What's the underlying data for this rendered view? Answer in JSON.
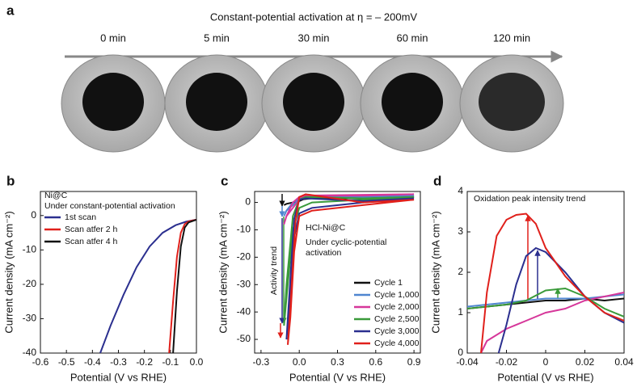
{
  "panel_a": {
    "label": "a",
    "title": "Constant-potential activation at η = – 200mV",
    "times": [
      "0 min",
      "5 min",
      "30 min",
      "60 min",
      "120 min"
    ]
  },
  "chart_data": [
    {
      "type": "line",
      "panel_label": "b",
      "xlabel": "Potential (V vs RHE)",
      "ylabel": "Current density (mA cm⁻²)",
      "annotations": [
        "Ni@C",
        "Under constant-potential activation"
      ],
      "legend": "upper left",
      "xlim": [
        -0.6,
        0.0
      ],
      "ylim": [
        -40,
        7
      ],
      "xticks": [
        -0.6,
        -0.5,
        -0.4,
        -0.3,
        -0.2,
        -0.1,
        {
          "value": 0,
          "label": "0.0"
        }
      ],
      "yticks": [
        -40,
        -30,
        -20,
        -10,
        0
      ],
      "series": [
        {
          "name": "1st scan",
          "color": "#2b2f8f",
          "x": [
            -0.37,
            -0.33,
            -0.28,
            -0.23,
            -0.18,
            -0.13,
            -0.08,
            -0.04,
            0
          ],
          "values": [
            -40,
            -32,
            -23,
            -15,
            -9,
            -5,
            -2.8,
            -1.8,
            -1.2
          ]
        },
        {
          "name": "Scan atfer 2 h",
          "color": "#e0201b",
          "x": [
            -0.105,
            -0.09,
            -0.075,
            -0.06,
            -0.045,
            -0.03,
            0
          ],
          "values": [
            -40,
            -25,
            -12,
            -5,
            -2.5,
            -1.7,
            -1.2
          ]
        },
        {
          "name": "Scan atfer 4 h",
          "color": "#111111",
          "x": [
            -0.09,
            -0.075,
            -0.06,
            -0.045,
            -0.03,
            0
          ],
          "values": [
            -40,
            -22,
            -9,
            -3.5,
            -2,
            -1.2
          ]
        }
      ]
    },
    {
      "type": "line",
      "panel_label": "c",
      "xlabel": "Potential (V vs RHE)",
      "ylabel": "Current density (mA cm⁻²)",
      "annotations": [
        "HCl-Ni@C",
        "Under cyclic-potential",
        "activation",
        "Activity trend"
      ],
      "legend": "lower right",
      "xlim": [
        -0.35,
        0.95
      ],
      "ylim": [
        -55,
        4
      ],
      "xticks": [
        -0.3,
        {
          "value": 0,
          "label": "0.0"
        },
        0.3,
        0.6,
        0.9
      ],
      "yticks": [
        -50,
        -40,
        -30,
        -20,
        -10,
        0
      ],
      "series": [
        {
          "name": "Cycle 1",
          "color": "#111111",
          "x": [
            0.9,
            0.5,
            0.1,
            0.0,
            -0.05,
            -0.1,
            -0.12,
            -0.1,
            -0.05,
            0.0,
            0.05,
            0.5,
            0.9
          ],
          "values": [
            2,
            1.5,
            1.5,
            1,
            0,
            -0.5,
            -1,
            -0.5,
            0,
            0.5,
            1.5,
            1.8,
            2
          ]
        },
        {
          "name": "Cycle 1,000",
          "color": "#4f86d0",
          "x": [
            0.9,
            0.5,
            0.1,
            0.0,
            -0.05,
            -0.1,
            -0.12,
            -0.1,
            -0.05,
            0.0,
            0.05,
            0.5,
            0.9
          ],
          "values": [
            2.5,
            2,
            2,
            1.5,
            0,
            -3,
            -5,
            -3,
            -1,
            1,
            2,
            2.2,
            2.5
          ]
        },
        {
          "name": "Cycle 2,000",
          "color": "#d6379a",
          "x": [
            0.9,
            0.5,
            0.1,
            0.0,
            -0.05,
            -0.1,
            -0.12,
            -0.1,
            -0.05,
            0.0,
            0.05,
            0.5,
            0.9
          ],
          "values": [
            3,
            2.5,
            2.5,
            2,
            0,
            -5,
            -8,
            -5,
            -2,
            1,
            2.5,
            2.8,
            3
          ]
        },
        {
          "name": "Cycle 2,500",
          "color": "#3a9a3a",
          "x": [
            0.9,
            0.5,
            0.1,
            0.0,
            -0.05,
            -0.1,
            -0.12,
            -0.1,
            -0.05,
            0.0,
            0.05,
            0.5,
            0.9
          ],
          "values": [
            2,
            1,
            0,
            -2,
            -10,
            -35,
            -45,
            -30,
            -5,
            1,
            2,
            1.5,
            2
          ]
        },
        {
          "name": "Cycle 3,000",
          "color": "#2b2f8f",
          "x": [
            0.9,
            0.5,
            0.1,
            0.0,
            -0.05,
            -0.08,
            -0.1,
            -0.08,
            -0.04,
            0.0,
            0.05,
            0.5,
            0.9
          ],
          "values": [
            1.5,
            0,
            -2,
            -4,
            -15,
            -40,
            -50,
            -35,
            -6,
            1,
            1.5,
            0.5,
            1.5
          ]
        },
        {
          "name": "Cycle 4,000",
          "color": "#e0201b",
          "x": [
            0.9,
            0.5,
            0.1,
            0.0,
            -0.04,
            -0.07,
            -0.09,
            -0.07,
            -0.03,
            0.0,
            0.05,
            0.5,
            0.9
          ],
          "values": [
            1,
            -1,
            -3,
            -5,
            -18,
            -42,
            -52,
            -38,
            -7,
            2,
            3,
            0,
            1
          ]
        }
      ]
    },
    {
      "type": "line",
      "panel_label": "d",
      "xlabel": "Potential (V vs RHE)",
      "ylabel": "Current density (mA cm⁻²)",
      "annotations": [
        "Oxidation peak intensity trend"
      ],
      "xlim": [
        -0.04,
        0.04
      ],
      "ylim": [
        0,
        4
      ],
      "xticks": [
        -0.04,
        -0.02,
        0,
        0.02,
        0.04
      ],
      "yticks": [
        0,
        1,
        2,
        3,
        4
      ],
      "series": [
        {
          "color": "#111111",
          "x": [
            -0.04,
            -0.03,
            -0.02,
            -0.01,
            0,
            0.01,
            0.02,
            0.03,
            0.04
          ],
          "values": [
            1.1,
            1.15,
            1.2,
            1.25,
            1.3,
            1.3,
            1.35,
            1.3,
            1.35
          ]
        },
        {
          "color": "#4f86d0",
          "x": [
            -0.04,
            -0.03,
            -0.02,
            -0.01,
            0,
            0.01,
            0.02,
            0.03,
            0.04
          ],
          "values": [
            1.15,
            1.2,
            1.25,
            1.3,
            1.35,
            1.35,
            1.35,
            1.4,
            1.45
          ]
        },
        {
          "color": "#d6379a",
          "x": [
            -0.033,
            -0.03,
            -0.02,
            -0.01,
            0,
            0.01,
            0.02,
            0.03,
            0.04
          ],
          "values": [
            0,
            0.3,
            0.6,
            0.8,
            1.0,
            1.1,
            1.3,
            1.4,
            1.5
          ]
        },
        {
          "color": "#3a9a3a",
          "x": [
            -0.04,
            -0.03,
            -0.02,
            -0.01,
            0,
            0.01,
            0.02,
            0.03,
            0.04
          ],
          "values": [
            1.1,
            1.15,
            1.2,
            1.3,
            1.55,
            1.6,
            1.4,
            1.1,
            0.9
          ]
        },
        {
          "color": "#2b2f8f",
          "x": [
            -0.024,
            -0.02,
            -0.015,
            -0.01,
            -0.005,
            0,
            0.01,
            0.02,
            0.03,
            0.04
          ],
          "values": [
            0,
            0.7,
            1.7,
            2.4,
            2.6,
            2.5,
            2.0,
            1.4,
            1.0,
            0.75
          ]
        },
        {
          "color": "#e0201b",
          "x": [
            -0.033,
            -0.03,
            -0.025,
            -0.02,
            -0.015,
            -0.01,
            -0.005,
            0,
            0.01,
            0.02,
            0.03,
            0.04
          ],
          "values": [
            0,
            1.5,
            2.9,
            3.3,
            3.42,
            3.45,
            3.2,
            2.6,
            1.9,
            1.4,
            1.0,
            0.8
          ]
        }
      ]
    }
  ]
}
